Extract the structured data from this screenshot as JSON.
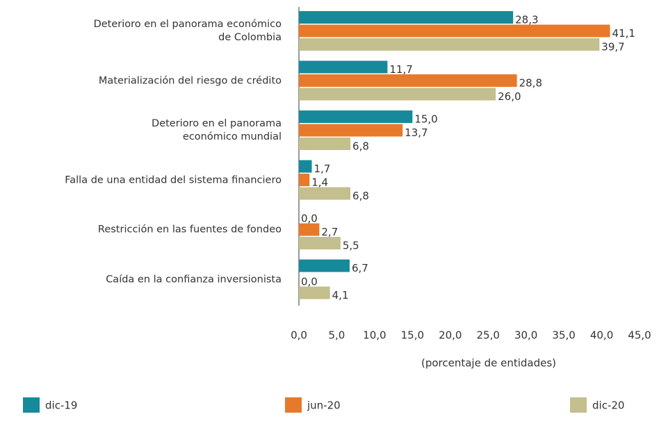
{
  "chart_data": {
    "type": "bar",
    "orientation": "horizontal",
    "categories": [
      "Deterioro en el panorama económico\nde Colombia",
      "Materialización del riesgo de crédito",
      "Deterioro en el panorama\neconómico mundial",
      "Falla de una entidad del sistema financiero",
      "Restricción en las fuentes de fondeo",
      "Caída en la confianza inversionista"
    ],
    "series": [
      {
        "name": "dic-19",
        "color": "#168a9b",
        "values": [
          28.3,
          11.7,
          15.0,
          1.7,
          0.0,
          6.7
        ],
        "value_labels": [
          "28,3",
          "11,7",
          "15,0",
          "1,7",
          "0,0",
          "6,7"
        ]
      },
      {
        "name": "jun-20",
        "color": "#e8792a",
        "values": [
          41.1,
          28.8,
          13.7,
          1.4,
          2.7,
          0.0
        ],
        "value_labels": [
          "41,1",
          "28,8",
          "13,7",
          "1,4",
          "2,7",
          "0,0"
        ]
      },
      {
        "name": "dic-20",
        "color": "#c3bf8e",
        "values": [
          39.7,
          26.0,
          6.8,
          6.8,
          5.5,
          4.1
        ],
        "value_labels": [
          "39,7",
          "26,0",
          "6,8",
          "6,8",
          "5,5",
          "4,1"
        ]
      }
    ],
    "xlabel": "(porcentaje de entidades)",
    "xlim": [
      0,
      45
    ],
    "xticks": [
      {
        "value": 0,
        "label": "0,0"
      },
      {
        "value": 5,
        "label": "5,0"
      },
      {
        "value": 10,
        "label": "10,0"
      },
      {
        "value": 15,
        "label": "15,0"
      },
      {
        "value": 20,
        "label": "20,0"
      },
      {
        "value": 25,
        "label": "25,0"
      },
      {
        "value": 30,
        "label": "30,0"
      },
      {
        "value": 35,
        "label": "35,0"
      },
      {
        "value": 40,
        "label": "40,0"
      },
      {
        "value": 45,
        "label": "45,0"
      }
    ],
    "legend": "bottom"
  }
}
